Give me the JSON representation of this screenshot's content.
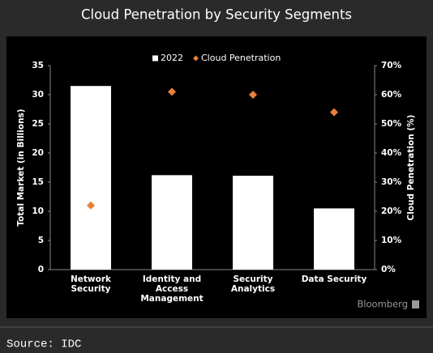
{
  "chart_data": {
    "type": "bar",
    "title": "Cloud Penetration by Security Segments",
    "categories": [
      "Network Security",
      "Identity and Access Management",
      "Security Analytics",
      "Data Security"
    ],
    "series": [
      {
        "name": "2022",
        "type": "bar",
        "color": "#ffffff",
        "values": [
          31.5,
          16.2,
          16.1,
          10.5
        ]
      },
      {
        "name": "Cloud Penetration",
        "type": "scatter",
        "marker": "diamond",
        "color": "#e8803a",
        "axis": "y2",
        "values": [
          22,
          61,
          60,
          54
        ]
      }
    ],
    "ylabel": "Total Market (in Billions)",
    "y2label": "Cloud Penetration (%)",
    "ylim": [
      0,
      35
    ],
    "yticks": [
      0,
      5,
      10,
      15,
      20,
      25,
      30,
      35
    ],
    "y2lim": [
      0,
      70
    ],
    "y2ticks": [
      {
        "value": 0,
        "label": "0%"
      },
      {
        "value": 10,
        "label": "10%"
      },
      {
        "value": 20,
        "label": "20%"
      },
      {
        "value": 30,
        "label": "30%"
      },
      {
        "value": 40,
        "label": "40%"
      },
      {
        "value": 50,
        "label": "50%"
      },
      {
        "value": 60,
        "label": "60%"
      },
      {
        "value": 70,
        "label": "70%"
      }
    ],
    "legend": "top",
    "watermark": "Bloomberg",
    "source": "Source: IDC"
  }
}
